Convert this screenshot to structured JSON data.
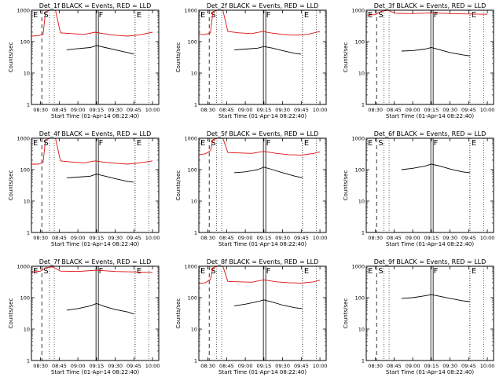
{
  "colors": {
    "events": "#000000",
    "lld": "#e01010",
    "axes": "#000000"
  },
  "figure": {
    "shared": {
      "xlabel": "Start Time (01-Apr-14 08:22:40)",
      "ylabel": "Counts/sec",
      "y_scale": "log",
      "ylim": [
        1,
        1000
      ],
      "y_ticks": [
        1,
        10,
        100,
        1000
      ],
      "y_tick_labels": [
        "1",
        "10",
        "100",
        "1000"
      ],
      "xlim": [
        "08:22:40",
        "10:05:00"
      ],
      "x_ticks": [
        "08:30",
        "08:45",
        "09:00",
        "09:15",
        "09:30",
        "09:45",
        "10:00"
      ],
      "x_tick_labels": [
        "08:30",
        "08:45",
        "09:00",
        "09:15",
        "09:30",
        "09:45",
        "10:00"
      ]
    }
  },
  "chart_data": [
    {
      "type": "line",
      "title": "Det_1f BLACK = Events, RED = LLD",
      "markers": [
        {
          "label": "E",
          "time": "08:22:40"
        },
        {
          "label": "S",
          "time": "08:31:00"
        },
        {
          "label": "F",
          "time": "09:15:30"
        },
        {
          "label": "E",
          "time": "09:46:00"
        }
      ],
      "series": [
        {
          "color": "red",
          "points": [
            [
              "08:22:40",
              150
            ],
            [
              "08:28:00",
              155
            ],
            [
              "08:32:00",
              170
            ],
            [
              "08:34:00",
              900
            ],
            [
              "08:38:00",
              1000
            ],
            [
              "08:42:00",
              1000
            ],
            [
              "08:46:00",
              190
            ],
            [
              "08:55:00",
              180
            ],
            [
              "09:05:00",
              170
            ],
            [
              "09:14:00",
              200
            ],
            [
              "09:20:00",
              180
            ],
            [
              "09:30:00",
              160
            ],
            [
              "09:40:00",
              150
            ],
            [
              "09:50:00",
              165
            ],
            [
              "10:00:00",
              200
            ]
          ]
        },
        {
          "color": "black",
          "points": [
            [
              "08:51:00",
              55
            ],
            [
              "09:00:00",
              60
            ],
            [
              "09:10:00",
              65
            ],
            [
              "09:15:00",
              75
            ],
            [
              "09:22:00",
              65
            ],
            [
              "09:30:00",
              55
            ],
            [
              "09:40:00",
              45
            ],
            [
              "09:45:00",
              40
            ]
          ]
        }
      ]
    },
    {
      "type": "line",
      "title": "Det_2f BLACK = Events, RED = LLD",
      "markers": [
        {
          "label": "E",
          "time": "08:22:40"
        },
        {
          "label": "S",
          "time": "08:31:00"
        },
        {
          "label": "F",
          "time": "09:15:30"
        },
        {
          "label": "E",
          "time": "09:46:00"
        }
      ],
      "series": [
        {
          "color": "red",
          "points": [
            [
              "08:22:40",
              170
            ],
            [
              "08:28:00",
              170
            ],
            [
              "08:32:00",
              190
            ],
            [
              "08:34:00",
              900
            ],
            [
              "08:38:00",
              1000
            ],
            [
              "08:42:00",
              1000
            ],
            [
              "08:46:00",
              210
            ],
            [
              "08:55:00",
              190
            ],
            [
              "09:05:00",
              180
            ],
            [
              "09:14:00",
              210
            ],
            [
              "09:20:00",
              190
            ],
            [
              "09:30:00",
              170
            ],
            [
              "09:40:00",
              160
            ],
            [
              "09:50:00",
              170
            ],
            [
              "10:00:00",
              210
            ]
          ]
        },
        {
          "color": "black",
          "points": [
            [
              "08:51:00",
              55
            ],
            [
              "09:00:00",
              58
            ],
            [
              "09:10:00",
              62
            ],
            [
              "09:15:00",
              70
            ],
            [
              "09:22:00",
              62
            ],
            [
              "09:30:00",
              52
            ],
            [
              "09:40:00",
              42
            ],
            [
              "09:45:00",
              40
            ]
          ]
        }
      ]
    },
    {
      "type": "line",
      "title": "Det_3f BLACK = Events, RED = LLD",
      "markers": [
        {
          "label": "E",
          "time": "08:22:40"
        },
        {
          "label": "S",
          "time": "08:31:00"
        },
        {
          "label": "F",
          "time": "09:15:30"
        },
        {
          "label": "E",
          "time": "09:46:00"
        }
      ],
      "series": [
        {
          "color": "red",
          "points": [
            [
              "08:22:40",
              700
            ],
            [
              "08:30:00",
              720
            ],
            [
              "08:34:00",
              900
            ],
            [
              "08:40:00",
              1000
            ],
            [
              "08:46:00",
              800
            ],
            [
              "09:00:00",
              780
            ],
            [
              "09:15:00",
              820
            ],
            [
              "09:30:00",
              780
            ],
            [
              "09:45:00",
              760
            ],
            [
              "10:00:00",
              740
            ]
          ]
        },
        {
          "color": "black",
          "points": [
            [
              "08:51:00",
              50
            ],
            [
              "09:00:00",
              52
            ],
            [
              "09:10:00",
              58
            ],
            [
              "09:15:00",
              65
            ],
            [
              "09:22:00",
              55
            ],
            [
              "09:30:00",
              45
            ],
            [
              "09:40:00",
              38
            ],
            [
              "09:46:00",
              35
            ]
          ]
        }
      ]
    },
    {
      "type": "line",
      "title": "Det_4f BLACK = Events, RED = LLD",
      "markers": [
        {
          "label": "E",
          "time": "08:22:40"
        },
        {
          "label": "S",
          "time": "08:31:00"
        },
        {
          "label": "F",
          "time": "09:15:30"
        },
        {
          "label": "E",
          "time": "09:46:00"
        }
      ],
      "series": [
        {
          "color": "red",
          "points": [
            [
              "08:22:40",
              150
            ],
            [
              "08:28:00",
              150
            ],
            [
              "08:32:00",
              170
            ],
            [
              "08:34:00",
              900
            ],
            [
              "08:38:00",
              1000
            ],
            [
              "08:42:00",
              1000
            ],
            [
              "08:46:00",
              190
            ],
            [
              "08:55:00",
              175
            ],
            [
              "09:05:00",
              165
            ],
            [
              "09:14:00",
              190
            ],
            [
              "09:20:00",
              175
            ],
            [
              "09:30:00",
              160
            ],
            [
              "09:40:00",
              150
            ],
            [
              "09:50:00",
              165
            ],
            [
              "10:00:00",
              190
            ]
          ]
        },
        {
          "color": "black",
          "points": [
            [
              "08:51:00",
              55
            ],
            [
              "09:00:00",
              58
            ],
            [
              "09:10:00",
              62
            ],
            [
              "09:15:00",
              72
            ],
            [
              "09:22:00",
              62
            ],
            [
              "09:30:00",
              52
            ],
            [
              "09:40:00",
              42
            ],
            [
              "09:45:00",
              40
            ]
          ]
        }
      ]
    },
    {
      "type": "line",
      "title": "Det_5f BLACK = Events, RED = LLD",
      "markers": [
        {
          "label": "E",
          "time": "08:22:40"
        },
        {
          "label": "S",
          "time": "08:31:00"
        },
        {
          "label": "F",
          "time": "09:15:30"
        },
        {
          "label": "E",
          "time": "09:46:00"
        }
      ],
      "series": [
        {
          "color": "red",
          "points": [
            [
              "08:22:40",
              300
            ],
            [
              "08:28:00",
              320
            ],
            [
              "08:32:00",
              400
            ],
            [
              "08:34:00",
              900
            ],
            [
              "08:38:00",
              1000
            ],
            [
              "08:42:00",
              1000
            ],
            [
              "08:46:00",
              350
            ],
            [
              "08:55:00",
              340
            ],
            [
              "09:05:00",
              330
            ],
            [
              "09:15:00",
              380
            ],
            [
              "09:25:00",
              330
            ],
            [
              "09:35:00",
              300
            ],
            [
              "09:45:00",
              290
            ],
            [
              "09:55:00",
              330
            ],
            [
              "10:00:00",
              370
            ]
          ]
        },
        {
          "color": "black",
          "points": [
            [
              "08:51:00",
              80
            ],
            [
              "09:00:00",
              85
            ],
            [
              "09:10:00",
              100
            ],
            [
              "09:15:00",
              120
            ],
            [
              "09:22:00",
              100
            ],
            [
              "09:30:00",
              80
            ],
            [
              "09:40:00",
              62
            ],
            [
              "09:46:00",
              55
            ]
          ]
        }
      ]
    },
    {
      "type": "line",
      "title": "Det_6f BLACK = Events, RED = LLD",
      "markers": [
        {
          "label": "E",
          "time": "08:22:40"
        },
        {
          "label": "S",
          "time": "08:31:00"
        },
        {
          "label": "F",
          "time": "09:15:30"
        },
        {
          "label": "E",
          "time": "09:46:00"
        }
      ],
      "series": [
        {
          "color": "black",
          "points": [
            [
              "08:51:00",
              100
            ],
            [
              "09:00:00",
              110
            ],
            [
              "09:10:00",
              130
            ],
            [
              "09:15:00",
              150
            ],
            [
              "09:22:00",
              130
            ],
            [
              "09:30:00",
              105
            ],
            [
              "09:40:00",
              85
            ],
            [
              "09:46:00",
              80
            ]
          ]
        }
      ]
    },
    {
      "type": "line",
      "title": "Det_7f BLACK = Events, RED = LLD",
      "markers": [
        {
          "label": "E",
          "time": "08:22:40"
        },
        {
          "label": "S",
          "time": "08:31:00"
        },
        {
          "label": "F",
          "time": "09:15:30"
        },
        {
          "label": "E",
          "time": "09:46:00"
        }
      ],
      "series": [
        {
          "color": "red",
          "points": [
            [
              "08:22:40",
              650
            ],
            [
              "08:30:00",
              700
            ],
            [
              "08:34:00",
              900
            ],
            [
              "08:40:00",
              950
            ],
            [
              "08:46:00",
              700
            ],
            [
              "09:00:00",
              680
            ],
            [
              "09:15:00",
              750
            ],
            [
              "09:30:00",
              680
            ],
            [
              "09:45:00",
              660
            ],
            [
              "10:00:00",
              640
            ]
          ]
        },
        {
          "color": "black",
          "points": [
            [
              "08:51:00",
              40
            ],
            [
              "09:00:00",
              45
            ],
            [
              "09:10:00",
              55
            ],
            [
              "09:15:00",
              65
            ],
            [
              "09:22:00",
              52
            ],
            [
              "09:30:00",
              42
            ],
            [
              "09:40:00",
              35
            ],
            [
              "09:45:00",
              30
            ]
          ]
        }
      ]
    },
    {
      "type": "line",
      "title": "Det_8f BLACK = Events, RED = LLD",
      "markers": [
        {
          "label": "E",
          "time": "08:22:40"
        },
        {
          "label": "S",
          "time": "08:31:00"
        },
        {
          "label": "F",
          "time": "09:15:30"
        },
        {
          "label": "E",
          "time": "09:46:00"
        }
      ],
      "series": [
        {
          "color": "red",
          "points": [
            [
              "08:22:40",
              280
            ],
            [
              "08:28:00",
              300
            ],
            [
              "08:32:00",
              380
            ],
            [
              "08:34:00",
              900
            ],
            [
              "08:38:00",
              1000
            ],
            [
              "08:42:00",
              1000
            ],
            [
              "08:46:00",
              330
            ],
            [
              "08:55:00",
              320
            ],
            [
              "09:05:00",
              310
            ],
            [
              "09:15:00",
              370
            ],
            [
              "09:25:00",
              320
            ],
            [
              "09:35:00",
              300
            ],
            [
              "09:45:00",
              290
            ],
            [
              "09:55:00",
              320
            ],
            [
              "10:00:00",
              360
            ]
          ]
        },
        {
          "color": "black",
          "points": [
            [
              "08:51:00",
              55
            ],
            [
              "09:00:00",
              62
            ],
            [
              "09:10:00",
              75
            ],
            [
              "09:15:00",
              85
            ],
            [
              "09:22:00",
              72
            ],
            [
              "09:30:00",
              58
            ],
            [
              "09:40:00",
              48
            ],
            [
              "09:46:00",
              45
            ]
          ]
        }
      ]
    },
    {
      "type": "line",
      "title": "Det_9f BLACK = Events, RED = LLD",
      "markers": [
        {
          "label": "E",
          "time": "08:22:40"
        },
        {
          "label": "S",
          "time": "08:31:00"
        },
        {
          "label": "F",
          "time": "09:15:30"
        },
        {
          "label": "E",
          "time": "09:46:00"
        }
      ],
      "series": [
        {
          "color": "black",
          "points": [
            [
              "08:51:00",
              95
            ],
            [
              "09:00:00",
              100
            ],
            [
              "09:10:00",
              115
            ],
            [
              "09:15:00",
              125
            ],
            [
              "09:22:00",
              110
            ],
            [
              "09:30:00",
              95
            ],
            [
              "09:40:00",
              80
            ],
            [
              "09:46:00",
              75
            ]
          ]
        }
      ]
    }
  ]
}
